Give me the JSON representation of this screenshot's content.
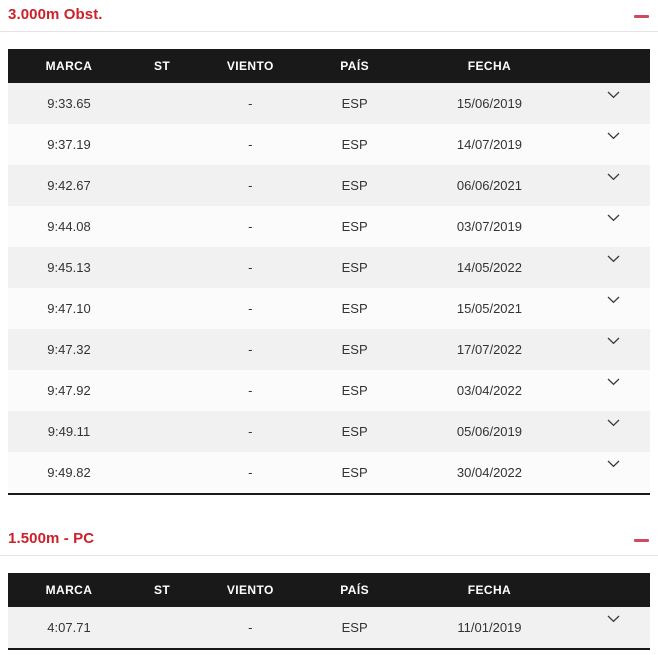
{
  "colors": {
    "heading_red": "#cc202b",
    "minus_icon_pink": "#d14961",
    "table_header_bg": "#191919",
    "table_header_text": "#ffffff",
    "row_odd_bg": "#f1f1f2",
    "row_even_bg": "#fbfbfb",
    "cell_text": "#333333"
  },
  "icons": {
    "collapse": "minus-icon",
    "row_expand": "chevron-down-icon"
  },
  "columns": {
    "marca": "MARCA",
    "st": "ST",
    "viento": "VIENTO",
    "pais": "PAÍS",
    "fecha": "FECHA"
  },
  "sections": [
    {
      "title": "3.000m Obst.",
      "rows": [
        {
          "marca": "9:33.65",
          "st": "",
          "viento": "-",
          "pais": "ESP",
          "fecha": "15/06/2019"
        },
        {
          "marca": "9:37.19",
          "st": "",
          "viento": "-",
          "pais": "ESP",
          "fecha": "14/07/2019"
        },
        {
          "marca": "9:42.67",
          "st": "",
          "viento": "-",
          "pais": "ESP",
          "fecha": "06/06/2021"
        },
        {
          "marca": "9:44.08",
          "st": "",
          "viento": "-",
          "pais": "ESP",
          "fecha": "03/07/2019"
        },
        {
          "marca": "9:45.13",
          "st": "",
          "viento": "-",
          "pais": "ESP",
          "fecha": "14/05/2022"
        },
        {
          "marca": "9:47.10",
          "st": "",
          "viento": "-",
          "pais": "ESP",
          "fecha": "15/05/2021"
        },
        {
          "marca": "9:47.32",
          "st": "",
          "viento": "-",
          "pais": "ESP",
          "fecha": "17/07/2022"
        },
        {
          "marca": "9:47.92",
          "st": "",
          "viento": "-",
          "pais": "ESP",
          "fecha": "03/04/2022"
        },
        {
          "marca": "9:49.11",
          "st": "",
          "viento": "-",
          "pais": "ESP",
          "fecha": "05/06/2019"
        },
        {
          "marca": "9:49.82",
          "st": "",
          "viento": "-",
          "pais": "ESP",
          "fecha": "30/04/2022"
        }
      ]
    },
    {
      "title": "1.500m - PC",
      "rows": [
        {
          "marca": "4:07.71",
          "st": "",
          "viento": "-",
          "pais": "ESP",
          "fecha": "11/01/2019"
        }
      ]
    }
  ]
}
